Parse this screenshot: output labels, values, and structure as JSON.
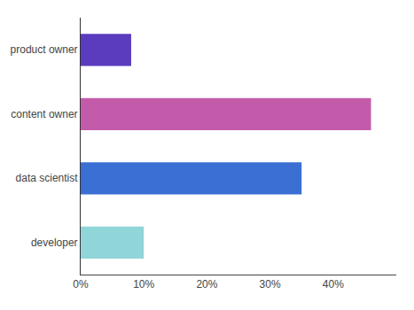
{
  "chart_data": {
    "type": "bar",
    "orientation": "horizontal",
    "categories": [
      "developer",
      "data scientist",
      "content owner",
      "product owner"
    ],
    "values": [
      0.1,
      0.35,
      0.46,
      0.08
    ],
    "colors": [
      "#90d5d8",
      "#3b6fd4",
      "#c45baa",
      "#5b3cbf"
    ],
    "xlim": [
      0,
      0.5
    ],
    "xticks": [
      {
        "value": 0.0,
        "label": "0%"
      },
      {
        "value": 0.1,
        "label": "10%"
      },
      {
        "value": 0.2,
        "label": "20%"
      },
      {
        "value": 0.3,
        "label": "30%"
      },
      {
        "value": 0.4,
        "label": "40%"
      }
    ],
    "grid": false
  }
}
